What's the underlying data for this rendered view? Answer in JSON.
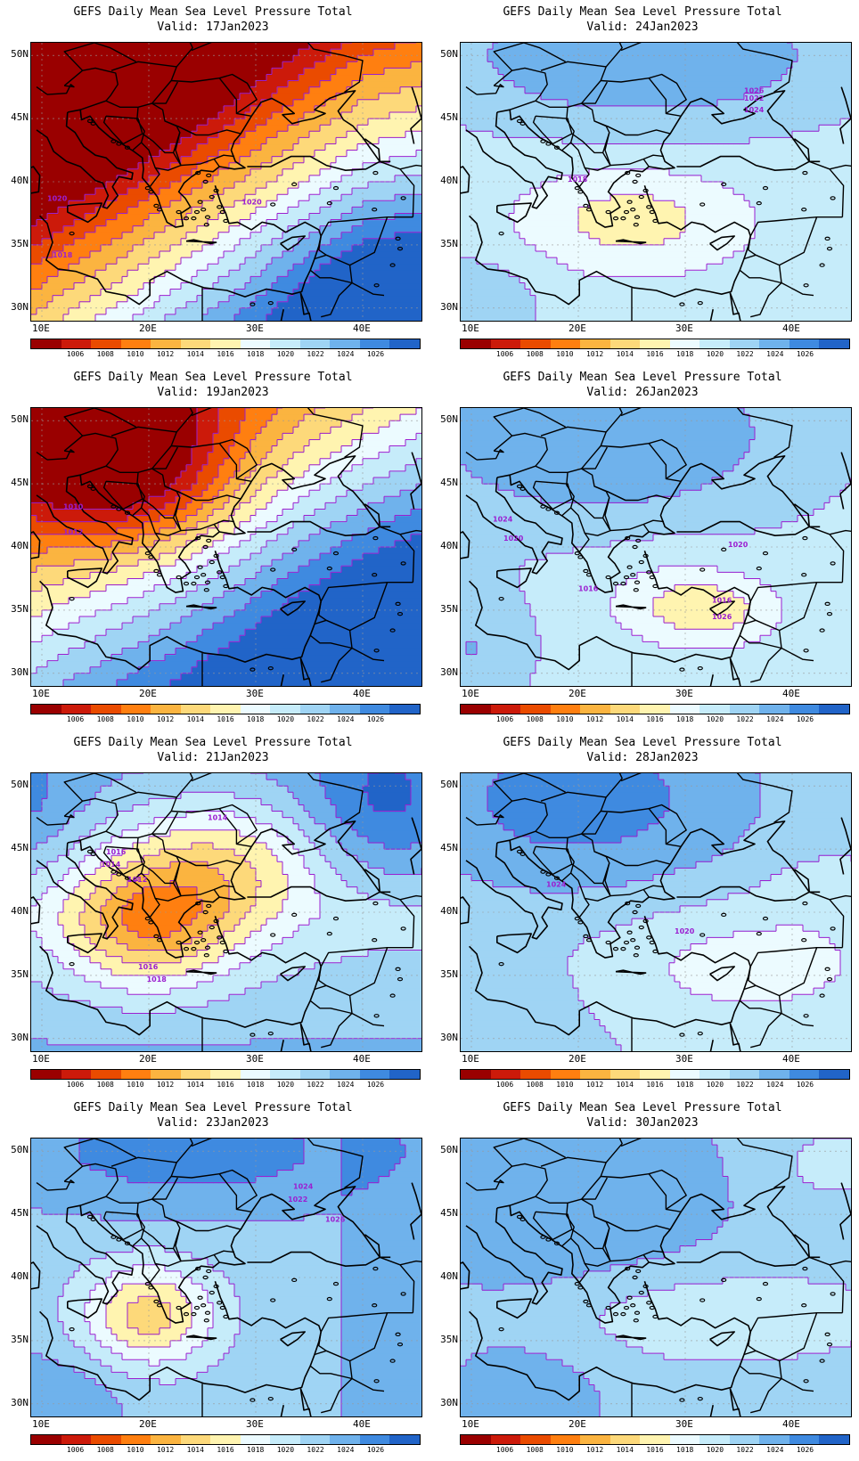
{
  "title": "GEFS Daily Mean Sea Level Pressure Total",
  "axes": {
    "lat_ticks": [
      "50N",
      "45N",
      "40N",
      "35N",
      "30N"
    ],
    "lon_ticks": [
      "10E",
      "20E",
      "30E",
      "40E"
    ]
  },
  "colorbar": {
    "labels": [
      "1006",
      "1008",
      "1010",
      "1012",
      "1014",
      "1016",
      "1018",
      "1020",
      "1022",
      "1024",
      "1026"
    ],
    "colors": [
      "#9a0000",
      "#cc1a0a",
      "#ea4b00",
      "#ff7f10",
      "#fbb440",
      "#fdd97a",
      "#fff4b0",
      "#ecfbff",
      "#c6ecfa",
      "#9fd4f4",
      "#6fb2ec",
      "#3f8ae0",
      "#2164c8"
    ]
  },
  "colors": {
    "contour": "#9b1fd0",
    "land": "#000000"
  },
  "panels": [
    {
      "valid": "Valid: 17Jan2023",
      "pattern": "low_nw",
      "contour_labels": [
        "1020",
        "1018",
        "1020"
      ]
    },
    {
      "valid": "Valid: 24Jan2023",
      "pattern": "low_greece",
      "contour_labels": [
        "1018",
        "1022",
        "1024",
        "1026"
      ]
    },
    {
      "valid": "Valid: 19Jan2023",
      "pattern": "low_nw2",
      "contour_labels": [
        "1012",
        "1010"
      ]
    },
    {
      "valid": "Valid: 26Jan2023",
      "pattern": "high",
      "contour_labels": [
        "1024",
        "1020",
        "1020",
        "1016",
        "1016",
        "1026"
      ]
    },
    {
      "valid": "Valid: 21Jan2023",
      "pattern": "low_balkan",
      "contour_labels": [
        "1014",
        "1016",
        "1014",
        "1012",
        "1016",
        "1018"
      ]
    },
    {
      "valid": "Valid: 28Jan2023",
      "pattern": "high2",
      "contour_labels": [
        "1024",
        "1020"
      ]
    },
    {
      "valid": "Valid: 23Jan2023",
      "pattern": "low_ionian",
      "contour_labels": [
        "1024",
        "1022",
        "1026"
      ]
    },
    {
      "valid": "Valid: 30Jan2023",
      "pattern": "high3",
      "contour_labels": []
    }
  ]
}
